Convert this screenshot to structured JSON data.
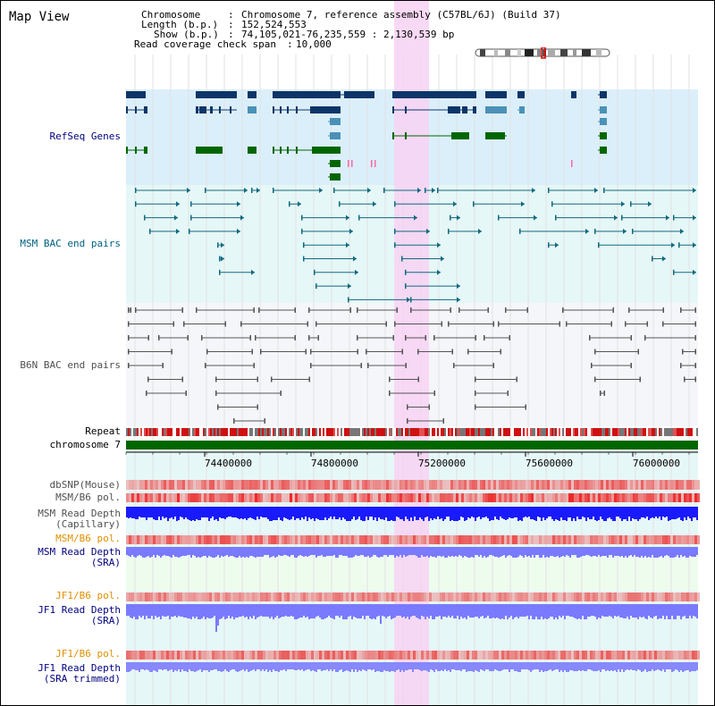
{
  "title": "Map View",
  "info": {
    "chromosome_key": "Chromosome",
    "chromosome_val": "Chromosome 7, reference assembly (C57BL/6J) (Build 37)",
    "length_key": "Length (b.p.)",
    "length_val": "152,524,553",
    "show_key": "Show (b.p.)",
    "show_val": "74,105,021-76,235,559 : 2,130,539 bp",
    "coverage_key": "Read coverage check span",
    "coverage_val": "10,000"
  },
  "tracks": {
    "refseq": "RefSeq Genes",
    "msm_bac": "MSM BAC end pairs",
    "b6n_bac": "B6N BAC end pairs",
    "repeat": "Repeat",
    "chromosome": "chromosome 7",
    "dbsnp": "dbSNP(Mouse)",
    "msm_b6_pol": "MSM/B6 pol.",
    "msm_depth_cap_1": "MSM Read Depth",
    "msm_depth_cap_2": "(Capillary)",
    "msm_b6_pol2": "MSM/B6 pol.",
    "msm_depth_sra_1": "MSM Read Depth",
    "msm_depth_sra_2": "(SRA)",
    "jf1_b6_pol": "JF1/B6 pol.",
    "jf1_depth_sra_1": "JF1 Read Depth",
    "jf1_depth_sra_2": "(SRA)",
    "jf1_b6_pol2": "JF1/B6 pol.",
    "jf1_depth_trim_1": "JF1 Read Depth",
    "jf1_depth_trim_2": "(SRA trimmed)"
  },
  "axis": {
    "ticks": [
      "74400000",
      "74800000",
      "75200000",
      "75600000",
      "76000000"
    ]
  },
  "colors": {
    "refseq_bg": "#dbeffa",
    "bac_bg": "#e6f7f7",
    "b6n_bg": "#f4f6fa",
    "highlight": "#f7d2f3",
    "gene_dark": "#0d3569",
    "gene_light": "#4a91b8",
    "gene_green": "#006600",
    "chromosome_green": "#006600",
    "msm_label": "#000080",
    "pol_label": "#e08f00",
    "depth_blue": "#1a1aff",
    "depth_light": "#7a7aff"
  }
}
